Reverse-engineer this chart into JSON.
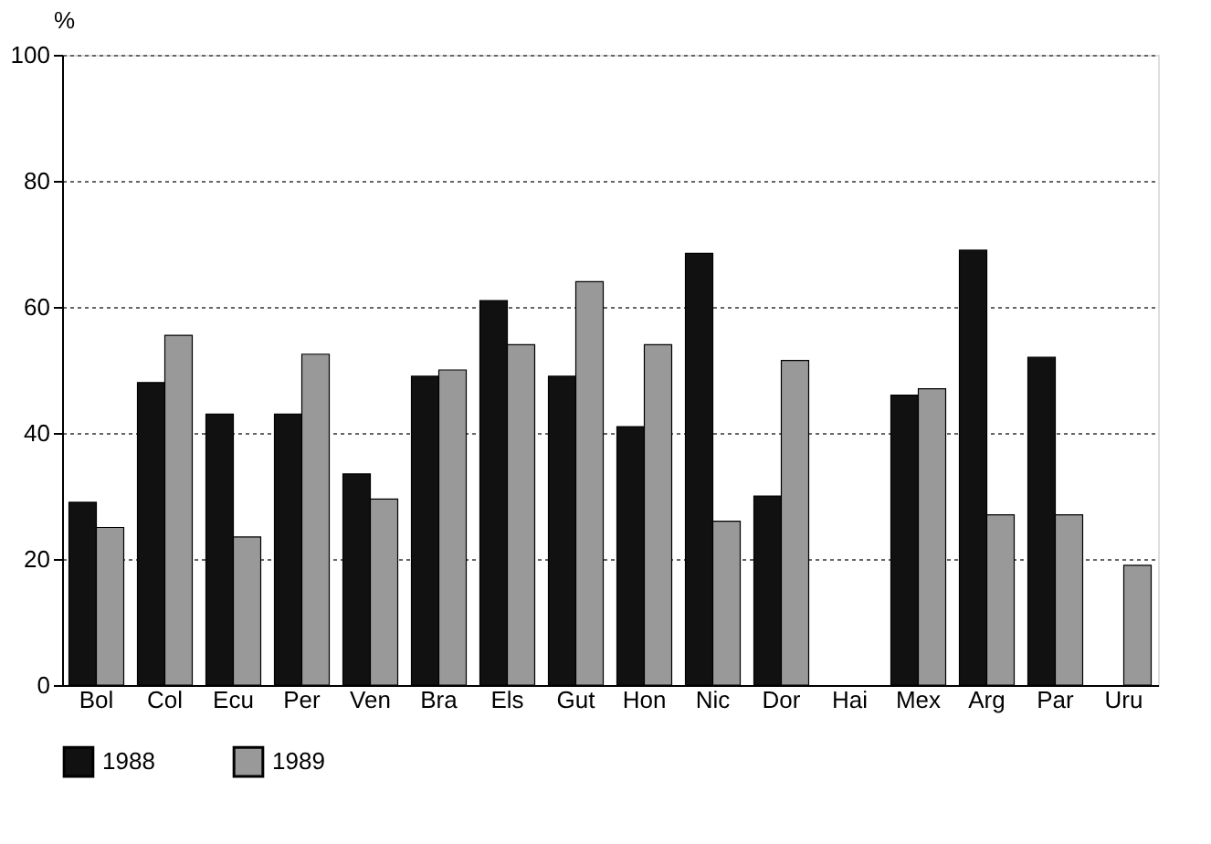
{
  "chart_data": {
    "type": "bar",
    "ylabel": "%",
    "categories": [
      "Bol",
      "Col",
      "Ecu",
      "Per",
      "Ven",
      "Bra",
      "Els",
      "Gut",
      "Hon",
      "Nic",
      "Dor",
      "Hai",
      "Mex",
      "Arg",
      "Par",
      "Uru"
    ],
    "series": [
      {
        "name": "1988",
        "color": "#111111",
        "values": [
          29,
          48,
          43,
          43,
          33.5,
          49,
          61,
          49,
          41,
          68.5,
          30,
          null,
          46,
          69,
          52,
          null
        ]
      },
      {
        "name": "1989",
        "color": "#999999",
        "values": [
          25,
          55.5,
          23.5,
          52.5,
          29.5,
          50,
          54,
          64,
          54,
          26,
          51.5,
          null,
          47,
          27,
          27,
          19
        ]
      }
    ],
    "ylim": [
      0,
      100
    ],
    "yticks": [
      0,
      20,
      40,
      60,
      80,
      100
    ],
    "grid": "y",
    "legend": "bottom"
  }
}
